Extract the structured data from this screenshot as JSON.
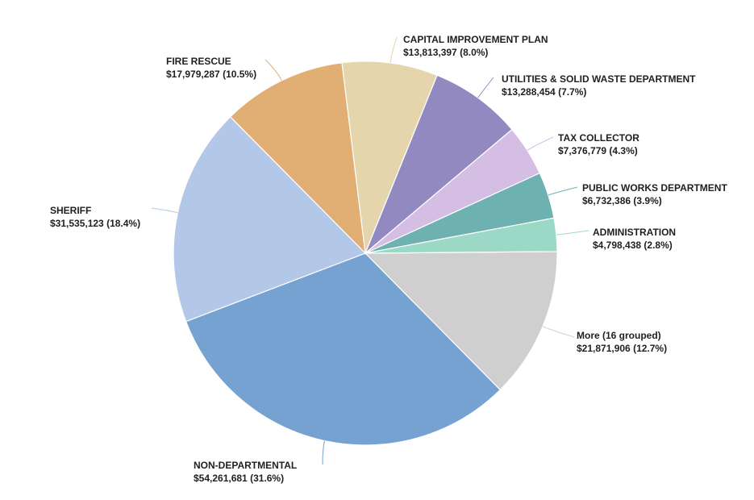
{
  "chart_data": {
    "type": "pie",
    "title": "",
    "start_angle_deg": -0.5,
    "direction": "clockwise-from-east",
    "grid": false,
    "legend": "none",
    "slices": [
      {
        "name": "More (16 grouped)",
        "value_label": "$21,871,906 (12.7%)",
        "value": 21871906,
        "percent": 12.7,
        "color": "#cfcfcf"
      },
      {
        "name": "NON-DEPARTMENTAL",
        "value_label": "$54,261,681 (31.6%)",
        "value": 54261681,
        "percent": 31.6,
        "color": "#76a2d1"
      },
      {
        "name": "SHERIFF",
        "value_label": "$31,535,123 (18.4%)",
        "value": 31535123,
        "percent": 18.4,
        "color": "#b3c7e8"
      },
      {
        "name": "FIRE RESCUE",
        "value_label": "$17,979,287 (10.5%)",
        "value": 17979287,
        "percent": 10.5,
        "color": "#e1ae73"
      },
      {
        "name": "CAPITAL IMPROVEMENT PLAN",
        "value_label": "$13,813,397 (8.0%)",
        "value": 13813397,
        "percent": 8.0,
        "color": "#e4d5ac"
      },
      {
        "name": "UTILITIES & SOLID WASTE DEPARTMENT",
        "value_label": "$13,288,454 (7.7%)",
        "value": 13288454,
        "percent": 7.7,
        "color": "#9289c1"
      },
      {
        "name": "TAX COLLECTOR",
        "value_label": "$7,376,779 (4.3%)",
        "value": 7376779,
        "percent": 4.3,
        "color": "#d5bee3"
      },
      {
        "name": "PUBLIC WORKS DEPARTMENT",
        "value_label": "$6,732,386 (3.9%)",
        "value": 6732386,
        "percent": 3.9,
        "color": "#6db1b0"
      },
      {
        "name": "ADMINISTRATION",
        "value_label": "$4,798,438 (2.8%)",
        "value": 4798438,
        "percent": 2.8,
        "color": "#9cd8c6"
      }
    ]
  }
}
